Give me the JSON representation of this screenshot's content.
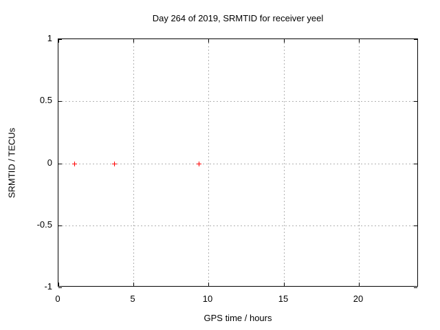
{
  "title": "Day 264 of 2019, SRMTID for receiver yeel",
  "chart_data": {
    "type": "scatter",
    "title": "Day 264 of 2019, SRMTID for receiver yeel",
    "xlabel": "GPS time / hours",
    "ylabel": "SRMTID / TECUs",
    "xlim": [
      0,
      24
    ],
    "ylim": [
      -1,
      1
    ],
    "x_ticks": [
      0,
      5,
      10,
      15,
      20
    ],
    "y_ticks": [
      -1,
      -0.5,
      0,
      0.5,
      1
    ],
    "grid": true,
    "legend": "none",
    "marker": "plus",
    "series": [
      {
        "x": [
          1.05,
          3.7,
          9.35
        ],
        "y": [
          0,
          0,
          0
        ]
      }
    ]
  },
  "colors": {
    "background": "#ffffff",
    "frame": "#000000",
    "grid": "#b0b0b0",
    "text": "#000000",
    "marker": "#ff0000"
  }
}
